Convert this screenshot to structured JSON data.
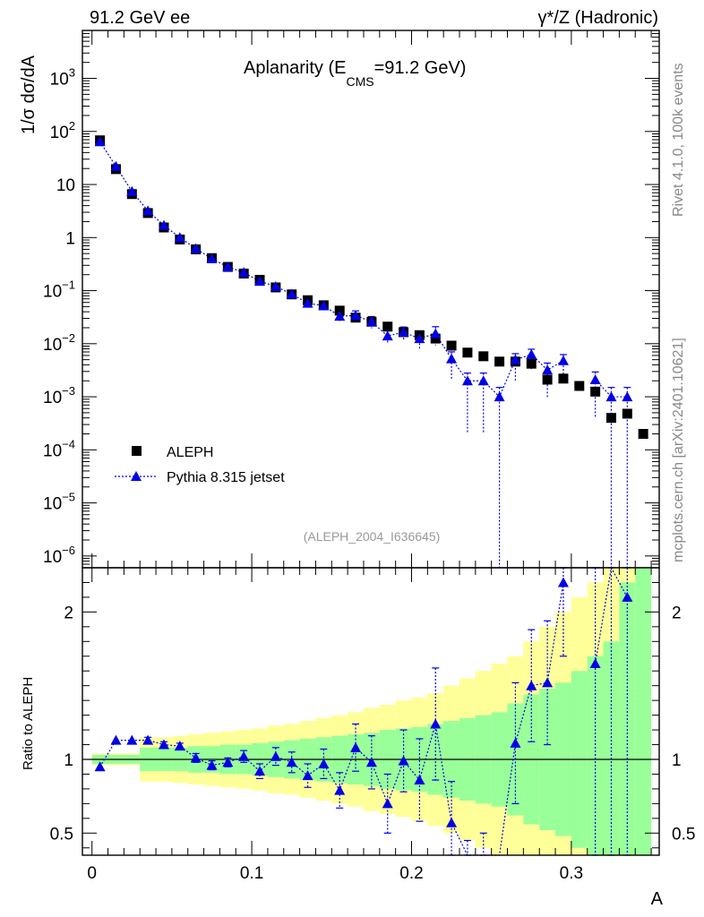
{
  "header": {
    "left": "91.2 GeV ee",
    "right": "γ*/Z (Hadronic)"
  },
  "side_text": {
    "top": "Rivet 4.1.0,  100k events",
    "bottom": "mcplots.cern.ch [arXiv:2401.10621]"
  },
  "chart_data": [
    {
      "type": "scatter",
      "title_main": "Aplanarity (E",
      "title_sub": "CMS",
      "title_tail": "=91.2 GeV)",
      "ylabel": "1/σ  dσ/dA",
      "yscale": "log",
      "ylim": [
        6e-07,
        8000
      ],
      "xlim": [
        -0.006,
        0.355
      ],
      "ytick_labels": [
        {
          "v": 1000,
          "base": "10",
          "exp": "3"
        },
        {
          "v": 100,
          "base": "10",
          "exp": "2"
        },
        {
          "v": 10,
          "base": "10",
          "exp": ""
        },
        {
          "v": 1,
          "base": "1",
          "exp": ""
        },
        {
          "v": 0.1,
          "base": "10",
          "exp": "−1"
        },
        {
          "v": 0.01,
          "base": "10",
          "exp": "−2"
        },
        {
          "v": 0.001,
          "base": "10",
          "exp": "−3"
        },
        {
          "v": 0.0001,
          "base": "10",
          "exp": "−4"
        },
        {
          "v": 1e-05,
          "base": "10",
          "exp": "−5"
        },
        {
          "v": 1e-06,
          "base": "10",
          "exp": "−6"
        }
      ],
      "analysis_tag": "(ALEPH_2004_I636645)",
      "legend": [
        {
          "name": "ALEPH",
          "marker": "square"
        },
        {
          "name": "Pythia 8.315 jetset",
          "marker": "triangle"
        }
      ],
      "x": [
        0.005,
        0.015,
        0.025,
        0.035,
        0.045,
        0.055,
        0.065,
        0.075,
        0.085,
        0.095,
        0.105,
        0.115,
        0.125,
        0.135,
        0.145,
        0.155,
        0.165,
        0.175,
        0.185,
        0.195,
        0.205,
        0.215,
        0.225,
        0.235,
        0.245,
        0.255,
        0.265,
        0.275,
        0.285,
        0.295,
        0.305,
        0.315,
        0.325,
        0.335,
        0.345
      ],
      "series": [
        {
          "name": "ALEPH",
          "color": "#000000",
          "values": [
            68,
            19.5,
            6.6,
            2.9,
            1.55,
            0.92,
            0.6,
            0.41,
            0.28,
            0.21,
            0.16,
            0.115,
            0.085,
            0.066,
            0.053,
            0.042,
            0.031,
            0.026,
            0.021,
            0.0165,
            0.0145,
            0.0125,
            0.0092,
            0.0068,
            0.0058,
            0.0046,
            0.0046,
            0.0042,
            0.0021,
            0.0022,
            0.0016,
            0.00125,
            0.0004,
            0.00048,
            0.0002
          ]
        },
        {
          "name": "Pythia 8.315 jetset",
          "color": "#0000e6",
          "values": [
            64,
            22,
            7.4,
            3.2,
            1.7,
            1.0,
            0.62,
            0.4,
            0.28,
            0.22,
            0.15,
            0.12,
            0.086,
            0.058,
            0.052,
            0.033,
            0.034,
            0.026,
            0.014,
            0.0165,
            0.0125,
            0.0155,
            0.0052,
            0.002,
            0.002,
            0.001,
            0.005,
            0.0063,
            0.0032,
            0.0048,
            null,
            0.0021,
            0.001,
            0.001,
            null
          ],
          "err_lo": [
            0.02,
            0.03,
            0.04,
            0.05,
            0.06,
            0.07,
            0.08,
            0.09,
            0.1,
            0.11,
            0.12,
            0.13,
            0.15,
            0.16,
            0.18,
            0.2,
            0.22,
            0.25,
            0.3,
            0.3,
            0.35,
            0.4,
            0.6,
            0.9,
            0.9,
            1.0,
            0.6,
            0.5,
            0.7,
            0.6,
            0,
            0.8,
            1.0,
            1.0,
            0
          ],
          "err_hi": [
            0.02,
            0.03,
            0.04,
            0.05,
            0.06,
            0.07,
            0.08,
            0.09,
            0.1,
            0.11,
            0.12,
            0.13,
            0.15,
            0.16,
            0.18,
            0.2,
            0.22,
            0.25,
            0.3,
            0.25,
            0.3,
            0.35,
            0.35,
            0.4,
            0.4,
            0.5,
            0.3,
            0.25,
            0.35,
            0.3,
            0,
            0.4,
            0.5,
            0.5,
            0
          ]
        }
      ]
    },
    {
      "type": "line",
      "ylabel": "Ratio to ALEPH",
      "xlabel": "A",
      "ylim": [
        0.35,
        2.3
      ],
      "xlim": [
        -0.006,
        0.355
      ],
      "yticks": [
        0.5,
        1,
        2
      ],
      "ytick_labels": [
        "0.5",
        "1",
        "2"
      ],
      "xticks": [
        0,
        0.1,
        0.2,
        0.3
      ],
      "xtick_labels": [
        "0",
        "0.1",
        "0.2",
        "0.3"
      ],
      "reference_line": 1,
      "band_colors": {
        "inner": "#99ff99",
        "outer": "#ffff99"
      },
      "band_edges": [
        0,
        0.03,
        0.04,
        0.05,
        0.06,
        0.07,
        0.08,
        0.09,
        0.1,
        0.11,
        0.12,
        0.13,
        0.14,
        0.15,
        0.16,
        0.17,
        0.18,
        0.19,
        0.2,
        0.21,
        0.22,
        0.23,
        0.24,
        0.25,
        0.26,
        0.27,
        0.28,
        0.29,
        0.3,
        0.31,
        0.32,
        0.33,
        0.34,
        0.35
      ],
      "band_inner_lo": [
        0.97,
        0.92,
        0.92,
        0.92,
        0.91,
        0.91,
        0.9,
        0.9,
        0.89,
        0.88,
        0.87,
        0.86,
        0.85,
        0.84,
        0.83,
        0.82,
        0.8,
        0.79,
        0.78,
        0.76,
        0.74,
        0.72,
        0.7,
        0.68,
        0.62,
        0.56,
        0.52,
        0.48,
        0.4,
        0.35,
        0.35,
        0.35,
        0.35
      ],
      "band_inner_hi": [
        1.03,
        1.08,
        1.08,
        1.08,
        1.09,
        1.09,
        1.1,
        1.1,
        1.11,
        1.12,
        1.13,
        1.14,
        1.15,
        1.16,
        1.17,
        1.18,
        1.2,
        1.21,
        1.22,
        1.24,
        1.26,
        1.28,
        1.3,
        1.32,
        1.38,
        1.44,
        1.48,
        1.52,
        1.6,
        1.7,
        1.8,
        2.2,
        2.3
      ],
      "band_outer_lo": [
        0.96,
        0.85,
        0.85,
        0.84,
        0.83,
        0.82,
        0.81,
        0.8,
        0.79,
        0.77,
        0.76,
        0.74,
        0.72,
        0.7,
        0.68,
        0.65,
        0.63,
        0.61,
        0.58,
        0.55,
        0.5,
        0.45,
        0.4,
        0.35,
        0.35,
        0.35,
        0.35,
        0.35,
        0.35,
        0.35,
        0.35,
        0.35,
        0.35
      ],
      "band_outer_hi": [
        1.04,
        1.15,
        1.15,
        1.16,
        1.17,
        1.18,
        1.19,
        1.2,
        1.21,
        1.23,
        1.24,
        1.26,
        1.28,
        1.3,
        1.32,
        1.35,
        1.37,
        1.4,
        1.42,
        1.45,
        1.5,
        1.55,
        1.6,
        1.65,
        1.7,
        1.8,
        1.9,
        2.0,
        2.1,
        2.2,
        2.3,
        2.3,
        2.3
      ],
      "x": [
        0.005,
        0.015,
        0.025,
        0.035,
        0.045,
        0.055,
        0.065,
        0.075,
        0.085,
        0.095,
        0.105,
        0.115,
        0.125,
        0.135,
        0.145,
        0.155,
        0.165,
        0.175,
        0.185,
        0.195,
        0.205,
        0.215,
        0.225,
        0.235,
        0.245,
        0.255,
        0.265,
        0.275,
        0.285,
        0.295,
        0.305,
        0.315,
        0.325,
        0.335,
        0.345
      ],
      "ratio": [
        0.95,
        1.13,
        1.13,
        1.13,
        1.1,
        1.09,
        1.01,
        0.96,
        0.98,
        1.02,
        0.92,
        1.02,
        0.98,
        0.89,
        0.97,
        0.79,
        1.08,
        0.98,
        0.7,
        0.99,
        0.86,
        1.24,
        0.57,
        0.28,
        0.31,
        0.22,
        1.11,
        1.5,
        1.52,
        2.2,
        null,
        1.65,
        2.5,
        2.1,
        null
      ],
      "ratio_lo": [
        0.94,
        1.12,
        1.12,
        1.11,
        1.08,
        1.07,
        0.98,
        0.93,
        0.95,
        0.98,
        0.87,
        0.96,
        0.91,
        0.81,
        0.87,
        0.67,
        0.92,
        0.8,
        0.5,
        0.78,
        0.58,
        0.86,
        0.1,
        0.1,
        0.1,
        0.1,
        0.7,
        1.12,
        1.1,
        1.7,
        null,
        0.35,
        0.35,
        0.35,
        null
      ],
      "ratio_hi": [
        0.96,
        1.14,
        1.14,
        1.15,
        1.12,
        1.11,
        1.04,
        0.99,
        1.01,
        1.06,
        0.97,
        1.08,
        1.05,
        0.97,
        1.07,
        0.91,
        1.24,
        1.16,
        0.9,
        1.2,
        1.14,
        1.62,
        0.85,
        0.45,
        0.5,
        0.34,
        1.52,
        1.88,
        1.94,
        2.3,
        null,
        2.3,
        2.3,
        2.3,
        null
      ]
    }
  ]
}
